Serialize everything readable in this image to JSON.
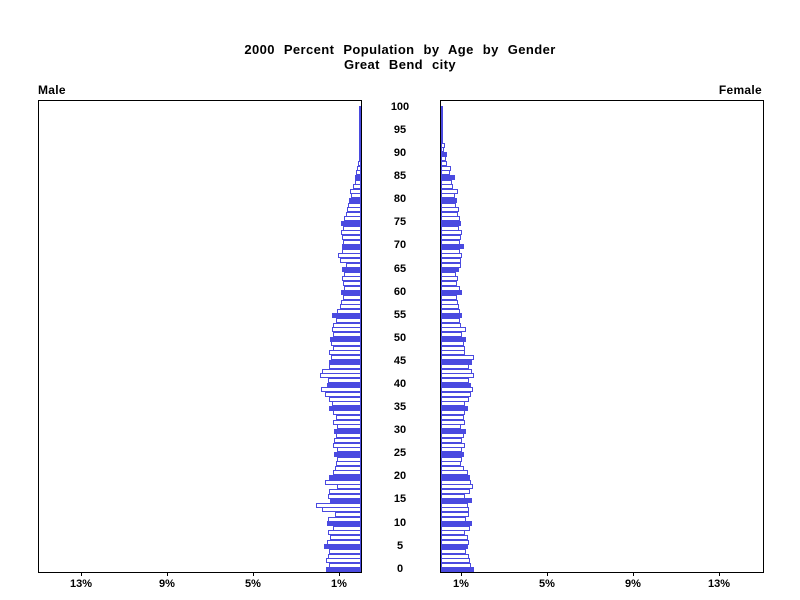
{
  "title": {
    "line1": "2000 Percent Population by Age by Gender",
    "line2": "Great Bend city"
  },
  "panels": {
    "male_label": "Male",
    "female_label": "Female"
  },
  "axes": {
    "age_tick_labels": [
      "0",
      "5",
      "10",
      "15",
      "20",
      "25",
      "30",
      "35",
      "40",
      "45",
      "50",
      "55",
      "60",
      "65",
      "70",
      "75",
      "80",
      "85",
      "90",
      "95",
      "100"
    ],
    "age_tick_values": [
      0,
      5,
      10,
      15,
      20,
      25,
      30,
      35,
      40,
      45,
      50,
      55,
      60,
      65,
      70,
      75,
      80,
      85,
      90,
      95,
      100
    ],
    "male_pct_tick_labels": [
      "13%",
      "9%",
      "5%",
      "1%"
    ],
    "female_pct_tick_labels": [
      "1%",
      "5%",
      "9%",
      "13%"
    ],
    "pct_tick_values": [
      13,
      9,
      5,
      1
    ],
    "axis_max_pct": 15
  },
  "colors": {
    "bar_blue": "#4a4ae0",
    "axis_black": "#000000",
    "background": "#ffffff"
  },
  "chart_data": {
    "type": "bar",
    "subtype": "population-pyramid",
    "title": "2000 Percent Population by Age by Gender",
    "subtitle": "Great Bend city",
    "orientation": "horizontal",
    "unit": "percent",
    "x_range_pct": [
      0,
      15
    ],
    "age_min": 0,
    "age_max": 100,
    "highlight_rule": "ages divisible by 5 are solid filled, others outlined",
    "ages": [
      0,
      1,
      2,
      3,
      4,
      5,
      6,
      7,
      8,
      9,
      10,
      11,
      12,
      13,
      14,
      15,
      16,
      17,
      18,
      19,
      20,
      21,
      22,
      23,
      24,
      25,
      26,
      27,
      28,
      29,
      30,
      31,
      32,
      33,
      34,
      35,
      36,
      37,
      38,
      39,
      40,
      41,
      42,
      43,
      44,
      45,
      46,
      47,
      48,
      49,
      50,
      51,
      52,
      53,
      54,
      55,
      56,
      57,
      58,
      59,
      60,
      61,
      62,
      63,
      64,
      65,
      66,
      67,
      68,
      69,
      70,
      71,
      72,
      73,
      74,
      75,
      76,
      77,
      78,
      79,
      80,
      81,
      82,
      83,
      84,
      85,
      86,
      87,
      88,
      89,
      90,
      91,
      92,
      93,
      94,
      95,
      96,
      97,
      98,
      99,
      100
    ],
    "series": [
      {
        "name": "Male",
        "values": [
          1.62,
          1.5,
          1.62,
          1.55,
          1.5,
          1.72,
          1.58,
          1.45,
          1.52,
          1.32,
          1.6,
          1.55,
          1.22,
          1.8,
          2.1,
          1.45,
          1.55,
          1.5,
          1.12,
          1.7,
          1.48,
          1.32,
          1.2,
          1.15,
          1.1,
          1.25,
          1.1,
          1.3,
          1.25,
          1.18,
          1.25,
          1.1,
          1.3,
          1.15,
          1.3,
          1.5,
          1.35,
          1.5,
          1.7,
          1.85,
          1.6,
          1.55,
          1.9,
          1.8,
          1.5,
          1.5,
          1.4,
          1.5,
          1.3,
          1.4,
          1.45,
          1.3,
          1.35,
          1.3,
          1.15,
          1.35,
          1.1,
          1.0,
          0.95,
          0.85,
          0.92,
          0.8,
          0.85,
          0.9,
          0.8,
          0.9,
          0.7,
          1.0,
          1.05,
          0.9,
          0.9,
          0.85,
          0.9,
          0.95,
          0.85,
          0.95,
          0.8,
          0.7,
          0.65,
          0.6,
          0.55,
          0.45,
          0.5,
          0.35,
          0.3,
          0.3,
          0.25,
          0.2,
          0.15,
          0.1,
          0.1,
          0.06,
          0.05,
          0.04,
          0.03,
          0.04,
          0.02,
          0.02,
          0.01,
          0.01,
          0.02
        ]
      },
      {
        "name": "Female",
        "values": [
          1.52,
          1.4,
          1.35,
          1.3,
          1.15,
          1.25,
          1.3,
          1.25,
          1.1,
          1.35,
          1.45,
          1.15,
          1.3,
          1.3,
          1.25,
          1.45,
          1.1,
          1.35,
          1.47,
          1.4,
          1.35,
          1.25,
          1.05,
          0.95,
          1.0,
          1.05,
          1.0,
          1.1,
          1.0,
          1.05,
          1.15,
          0.95,
          1.1,
          1.05,
          1.1,
          1.25,
          1.1,
          1.3,
          1.4,
          1.5,
          1.4,
          1.3,
          1.55,
          1.45,
          1.3,
          1.45,
          1.55,
          1.1,
          1.1,
          1.05,
          1.15,
          1.0,
          1.15,
          0.95,
          0.9,
          1.0,
          0.9,
          0.85,
          0.8,
          0.75,
          1.0,
          0.9,
          0.75,
          0.8,
          0.7,
          0.85,
          0.95,
          0.95,
          1.0,
          0.9,
          1.05,
          0.9,
          0.95,
          1.0,
          0.85,
          0.95,
          0.9,
          0.8,
          0.85,
          0.7,
          0.75,
          0.65,
          0.8,
          0.55,
          0.5,
          0.65,
          0.4,
          0.45,
          0.3,
          0.25,
          0.3,
          0.15,
          0.2,
          0.1,
          0.1,
          0.1,
          0.05,
          0.05,
          0.05,
          0.02,
          0.05
        ]
      }
    ]
  }
}
